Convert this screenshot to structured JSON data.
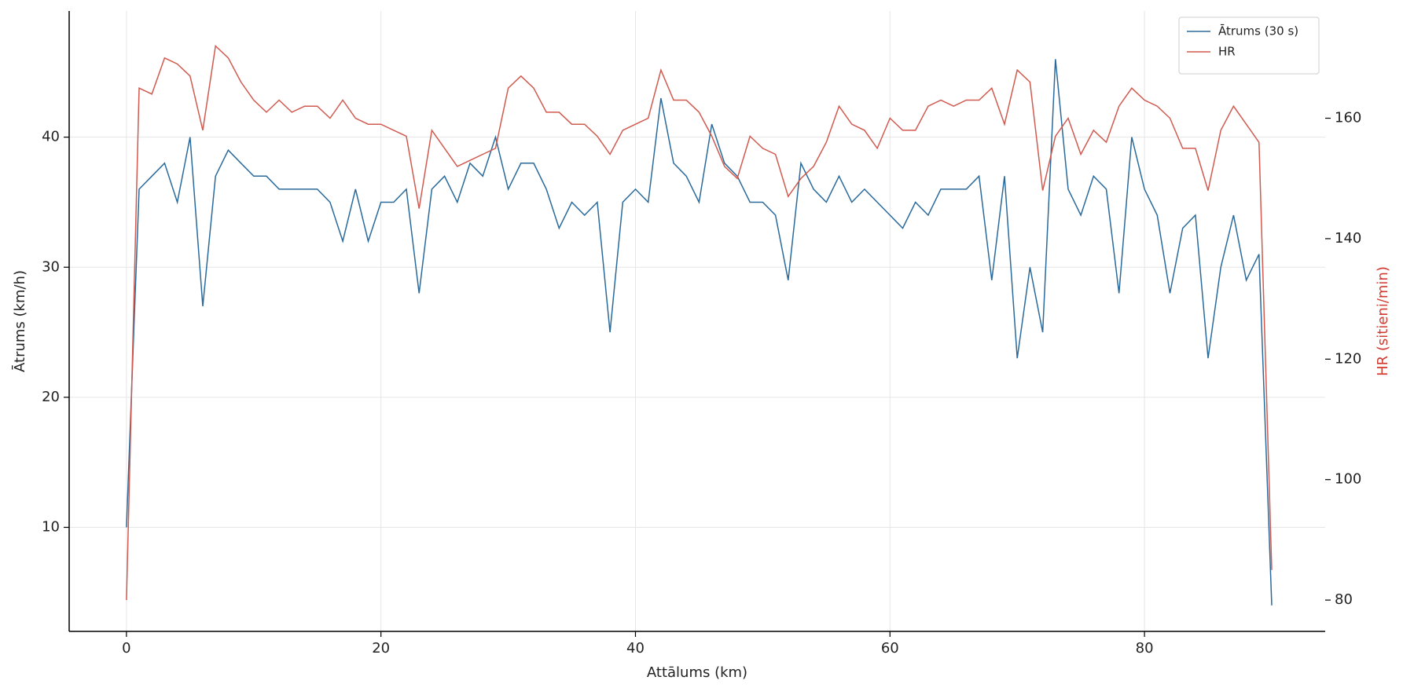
{
  "chart_data": {
    "type": "line",
    "xlabel": "Attālums (km)",
    "ylabel": "Ātrums (km/h)",
    "y2label": "HR (sitieni/min)",
    "x": [
      0,
      1,
      2,
      3,
      4,
      5,
      6,
      7,
      8,
      9,
      10,
      11,
      12,
      13,
      14,
      15,
      16,
      17,
      18,
      19,
      20,
      21,
      22,
      23,
      24,
      25,
      26,
      27,
      28,
      29,
      30,
      31,
      32,
      33,
      34,
      35,
      36,
      37,
      38,
      39,
      40,
      41,
      42,
      43,
      44,
      45,
      46,
      47,
      48,
      49,
      50,
      51,
      52,
      53,
      54,
      55,
      56,
      57,
      58,
      59,
      60,
      61,
      62,
      63,
      64,
      65,
      66,
      67,
      68,
      69,
      70,
      71,
      72,
      73,
      74,
      75,
      76,
      77,
      78,
      79,
      80,
      81,
      82,
      83,
      84,
      85,
      86,
      87,
      88,
      89,
      90
    ],
    "series": [
      {
        "name": "Ātrums (30 s)",
        "color": "#2a6a9b",
        "axis": "y",
        "values": [
          10,
          36,
          37,
          38,
          35,
          40,
          27,
          37,
          39,
          38,
          37,
          37,
          36,
          36,
          36,
          36,
          35,
          32,
          36,
          32,
          35,
          35,
          36,
          28,
          36,
          37,
          35,
          38,
          37,
          40,
          36,
          38,
          38,
          36,
          33,
          35,
          34,
          35,
          25,
          35,
          36,
          35,
          43,
          38,
          37,
          35,
          41,
          38,
          37,
          35,
          35,
          34,
          29,
          38,
          36,
          35,
          37,
          35,
          36,
          35,
          34,
          33,
          35,
          34,
          36,
          36,
          36,
          37,
          29,
          37,
          23,
          30,
          25,
          46,
          36,
          34,
          37,
          36,
          28,
          40,
          36,
          34,
          28,
          33,
          34,
          23,
          30,
          34,
          29,
          31,
          4
        ]
      },
      {
        "name": "HR",
        "color": "#d05a4f",
        "axis": "y2",
        "values": [
          80,
          165,
          164,
          170,
          169,
          167,
          158,
          172,
          170,
          166,
          163,
          161,
          163,
          161,
          162,
          162,
          160,
          163,
          160,
          159,
          159,
          158,
          157,
          145,
          158,
          155,
          152,
          153,
          154,
          155,
          165,
          167,
          165,
          161,
          161,
          159,
          159,
          157,
          154,
          158,
          159,
          160,
          168,
          163,
          163,
          161,
          157,
          152,
          150,
          157,
          155,
          154,
          147,
          150,
          152,
          156,
          162,
          159,
          158,
          155,
          160,
          158,
          158,
          162,
          163,
          162,
          163,
          163,
          165,
          159,
          168,
          166,
          148,
          157,
          160,
          154,
          158,
          156,
          162,
          165,
          163,
          162,
          160,
          155,
          155,
          148,
          158,
          162,
          159,
          156,
          85
        ]
      }
    ],
    "xlim": [
      -4.5,
      94.2
    ],
    "xticks": [
      0,
      20,
      40,
      60,
      80
    ],
    "ylim": [
      2.0,
      49.7
    ],
    "yticks": [
      10,
      20,
      30,
      40
    ],
    "y2lim": [
      74.8,
      177.8
    ],
    "y2ticks": [
      80,
      100,
      120,
      140,
      160
    ],
    "y2label_color": "#d03a2f",
    "grid": true,
    "legend": "upper right"
  }
}
